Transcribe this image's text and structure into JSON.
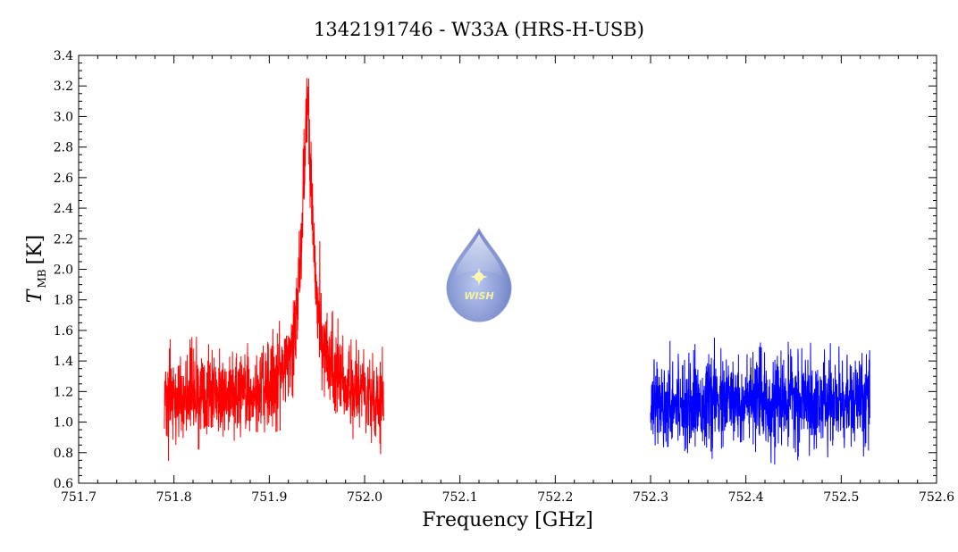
{
  "chart_data": {
    "type": "line",
    "title": "1342191746 - W33A (HRS-H-USB)",
    "xlabel": "Frequency [GHz]",
    "ylabel_main": "T",
    "ylabel_sub": "MB",
    "ylabel_unit": "[K]",
    "xlim": [
      751.7,
      752.6
    ],
    "ylim": [
      0.6,
      3.4
    ],
    "xticks": [
      "751.7",
      "751.8",
      "751.9",
      "752.0",
      "752.1",
      "752.2",
      "752.3",
      "752.4",
      "752.5",
      "752.6"
    ],
    "yticks": [
      "0.6",
      "0.8",
      "1.0",
      "1.2",
      "1.4",
      "1.6",
      "1.8",
      "2.0",
      "2.2",
      "2.4",
      "2.6",
      "2.8",
      "3.0",
      "3.2",
      "3.4"
    ],
    "grid": false,
    "series": [
      {
        "color": "#ff0000",
        "x_range": [
          751.79,
          752.02
        ],
        "baseline": 1.15,
        "noise_sigma": 0.14,
        "line": {
          "center": 751.94,
          "peak": 3.05,
          "width_ghz": 0.006,
          "wing_amp": 0.3,
          "wing_width_ghz": 0.02
        }
      },
      {
        "color": "#0000ff",
        "x_range": [
          752.3,
          752.53
        ],
        "baseline": 1.13,
        "noise_sigma": 0.14
      }
    ],
    "logo": {
      "name": "wish-logo-icon",
      "text": "WISH"
    }
  }
}
